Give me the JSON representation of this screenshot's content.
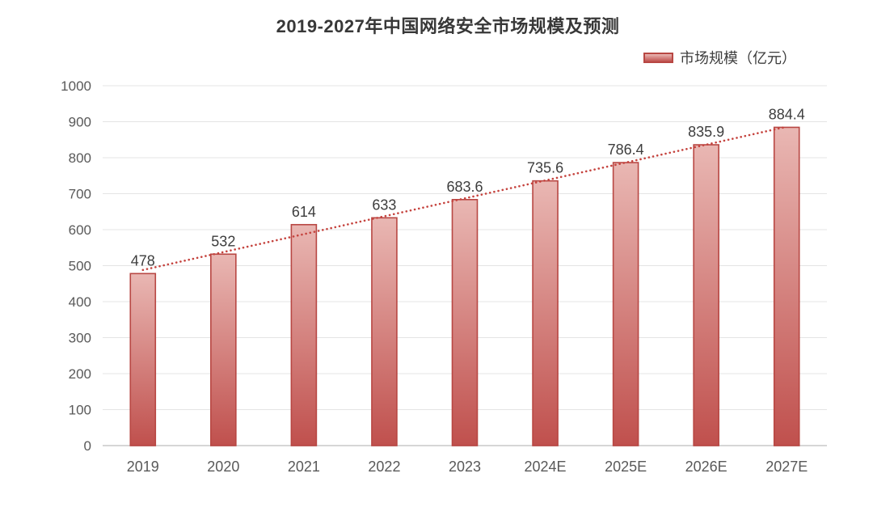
{
  "colors": {
    "background": "#ffffff",
    "bar_top": "#e9b7b3",
    "bar_bottom": "#c0504d",
    "bar_border": "#b84743",
    "trendline": "#c5433e",
    "gridline": "#e4e4e4",
    "axis_line": "#d6d6d6",
    "tick_text": "#595959",
    "value_text": "#3d3d3d",
    "title_text": "#383838"
  },
  "chart_data": {
    "type": "bar",
    "title": "2019-2027年中国网络安全市场规模及预测",
    "categories": [
      "2019",
      "2020",
      "2021",
      "2022",
      "2023",
      "2024E",
      "2025E",
      "2026E",
      "2027E"
    ],
    "series": [
      {
        "name": "市场规模（亿元）",
        "values": [
          478,
          532,
          614,
          633,
          683.6,
          735.6,
          786.4,
          835.9,
          884.4
        ]
      }
    ],
    "value_labels": [
      "478",
      "532",
      "614",
      "633",
      "683.6",
      "735.6",
      "786.4",
      "835.9",
      "884.4"
    ],
    "xlabel": "",
    "ylabel": "",
    "ylim": [
      0,
      1000
    ],
    "ytick_step": 100,
    "ytick_labels": [
      "0",
      "100",
      "200",
      "300",
      "400",
      "500",
      "600",
      "700",
      "800",
      "900",
      "1000"
    ],
    "grid": true,
    "legend_position": "top-right",
    "trendline": {
      "type": "linear",
      "style": "dotted"
    }
  }
}
